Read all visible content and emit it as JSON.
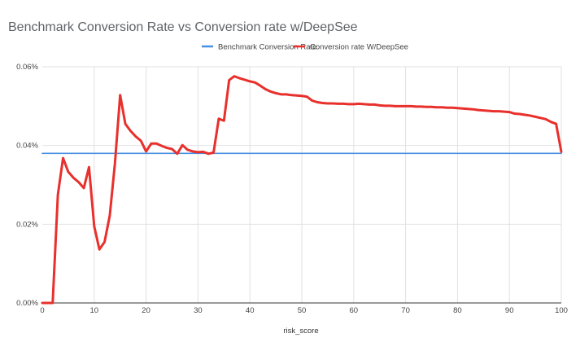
{
  "chart_data": {
    "type": "line",
    "title": "Benchmark Conversion Rate vs Conversion rate w/DeepSee",
    "xlabel": "risk_score",
    "ylabel": "",
    "xlim": [
      0,
      100
    ],
    "ylim": [
      0,
      0.06
    ],
    "x_ticks": [
      0,
      10,
      20,
      30,
      40,
      50,
      60,
      70,
      80,
      90,
      100
    ],
    "x_tick_labels": [
      "0",
      "10",
      "20",
      "30",
      "40",
      "50",
      "60",
      "70",
      "80",
      "90",
      "100"
    ],
    "y_ticks": [
      0,
      0.02,
      0.04,
      0.06
    ],
    "y_tick_labels": [
      "0.00%",
      "0.02%",
      "0.04%",
      "0.06%"
    ],
    "grid": true,
    "legend_position": "top",
    "series": [
      {
        "name": "Benchmark Conversion Rate",
        "color": "#4a90e2",
        "x": [
          0,
          100
        ],
        "values": [
          0.038,
          0.038
        ]
      },
      {
        "name": "Conversion rate W/DeepSee",
        "color": "#e8302c",
        "x": [
          0,
          1,
          2,
          3,
          4,
          5,
          6,
          7,
          8,
          9,
          10,
          11,
          12,
          13,
          14,
          15,
          16,
          17,
          18,
          19,
          20,
          21,
          22,
          23,
          24,
          25,
          26,
          27,
          28,
          29,
          30,
          31,
          32,
          33,
          34,
          35,
          36,
          37,
          38,
          39,
          40,
          41,
          42,
          43,
          44,
          45,
          46,
          47,
          48,
          49,
          50,
          51,
          52,
          53,
          54,
          55,
          56,
          57,
          58,
          59,
          60,
          61,
          62,
          63,
          64,
          65,
          66,
          67,
          68,
          69,
          70,
          71,
          72,
          73,
          74,
          75,
          76,
          77,
          78,
          79,
          80,
          81,
          82,
          83,
          84,
          85,
          86,
          87,
          88,
          89,
          90,
          91,
          92,
          93,
          94,
          95,
          96,
          97,
          98,
          99,
          100
        ],
        "values": [
          0.0,
          0.0,
          0.0,
          0.0275,
          0.0368,
          0.0333,
          0.0318,
          0.0307,
          0.0292,
          0.0345,
          0.0195,
          0.0136,
          0.0155,
          0.0222,
          0.0355,
          0.0528,
          0.0455,
          0.0437,
          0.0423,
          0.0412,
          0.0385,
          0.0405,
          0.0405,
          0.0399,
          0.0394,
          0.0391,
          0.0379,
          0.0401,
          0.0389,
          0.0385,
          0.0383,
          0.0384,
          0.0379,
          0.0382,
          0.0468,
          0.0463,
          0.0566,
          0.0576,
          0.0571,
          0.0567,
          0.0563,
          0.056,
          0.0552,
          0.0543,
          0.0537,
          0.0533,
          0.053,
          0.053,
          0.0528,
          0.0527,
          0.0526,
          0.0524,
          0.0514,
          0.051,
          0.0508,
          0.0507,
          0.0507,
          0.0506,
          0.0506,
          0.0505,
          0.0505,
          0.0506,
          0.0505,
          0.0504,
          0.0504,
          0.0502,
          0.0501,
          0.0501,
          0.05,
          0.05,
          0.05,
          0.05,
          0.0499,
          0.0499,
          0.0498,
          0.0498,
          0.0497,
          0.0497,
          0.0496,
          0.0496,
          0.0495,
          0.0494,
          0.0493,
          0.0492,
          0.049,
          0.0489,
          0.0488,
          0.0487,
          0.0487,
          0.0486,
          0.0485,
          0.0481,
          0.048,
          0.0478,
          0.0476,
          0.0473,
          0.047,
          0.0467,
          0.046,
          0.0455,
          0.0384
        ]
      }
    ]
  }
}
